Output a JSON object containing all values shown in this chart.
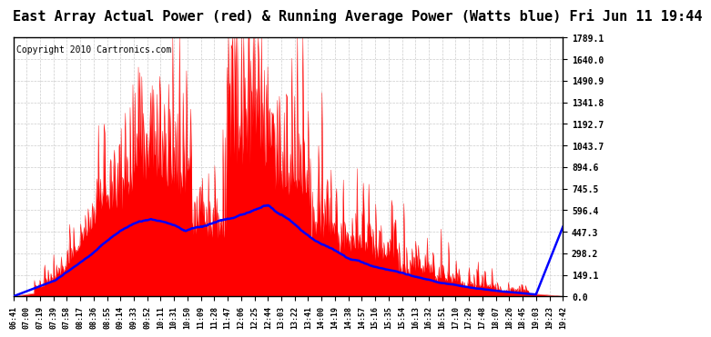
{
  "title": "East Array Actual Power (red) & Running Average Power (Watts blue) Fri Jun 11 19:44",
  "copyright": "Copyright 2010 Cartronics.com",
  "yticks": [
    0.0,
    149.1,
    298.2,
    447.3,
    596.4,
    745.5,
    894.6,
    1043.7,
    1192.7,
    1341.8,
    1490.9,
    1640.0,
    1789.1
  ],
  "xtick_labels": [
    "06:41",
    "07:00",
    "07:19",
    "07:39",
    "07:58",
    "08:17",
    "08:36",
    "08:55",
    "09:14",
    "09:33",
    "09:52",
    "10:11",
    "10:31",
    "10:50",
    "11:09",
    "11:28",
    "11:47",
    "12:06",
    "12:25",
    "12:44",
    "13:03",
    "13:22",
    "13:41",
    "14:00",
    "14:19",
    "14:38",
    "14:57",
    "15:16",
    "15:35",
    "15:54",
    "16:13",
    "16:32",
    "16:51",
    "17:10",
    "17:29",
    "17:48",
    "18:07",
    "18:26",
    "18:45",
    "19:03",
    "19:23",
    "19:42"
  ],
  "ylim": [
    0.0,
    1789.1
  ],
  "bg_color": "#ffffff",
  "plot_bg_color": "#ffffff",
  "actual_color": "#ff0000",
  "avg_color": "#0000ff",
  "grid_color": "#cccccc",
  "title_fontsize": 11,
  "copyright_fontsize": 7
}
